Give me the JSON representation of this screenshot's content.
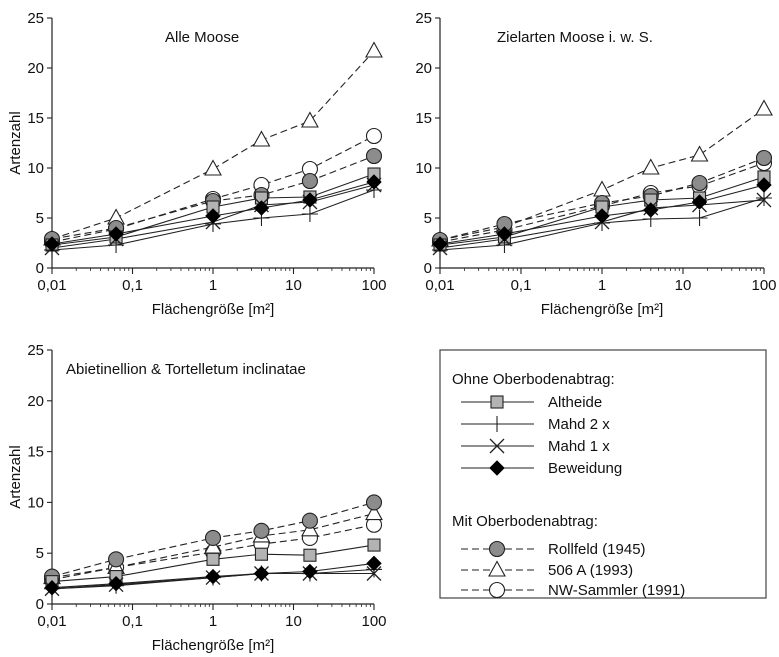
{
  "chart_data": [
    {
      "type": "line",
      "title": "Alle Moose",
      "xlabel": "Flächengröße [m²]",
      "ylabel": "Artenzahl",
      "xscale": "log",
      "x": [
        0.01,
        0.0625,
        1,
        4,
        16,
        100
      ],
      "xlim": [
        0.01,
        100
      ],
      "ylim": [
        0,
        25
      ],
      "xticks": [
        "0,01",
        "0,1",
        "1",
        "10",
        "100"
      ],
      "yticks": [
        0,
        5,
        10,
        15,
        20,
        25
      ],
      "series": [
        {
          "name": "Altheide",
          "values": [
            2.3,
            3.1,
            6.1,
            7.0,
            7.1,
            9.4
          ]
        },
        {
          "name": "Mahd 2 x",
          "values": [
            1.8,
            2.3,
            4.4,
            5.0,
            5.4,
            7.8
          ]
        },
        {
          "name": "Mahd 1 x",
          "values": [
            2.0,
            2.9,
            4.6,
            6.3,
            6.6,
            8.3
          ]
        },
        {
          "name": "Beweidung",
          "values": [
            2.4,
            3.4,
            5.2,
            6.0,
            6.8,
            8.6
          ]
        },
        {
          "name": "Rollfeld (1945)",
          "values": [
            2.9,
            4.0,
            6.7,
            7.3,
            8.7,
            11.2
          ]
        },
        {
          "name": "506 A (1993)",
          "values": [
            2.9,
            5.0,
            9.9,
            12.8,
            14.7,
            21.7
          ]
        },
        {
          "name": "NW-Sammler (1991)",
          "values": [
            2.6,
            3.9,
            6.9,
            8.3,
            9.9,
            13.2
          ]
        }
      ]
    },
    {
      "type": "line",
      "title": "Zielarten Moose i. w. S.",
      "xlabel": "Flächengröße [m²]",
      "ylabel": "",
      "xscale": "log",
      "x": [
        0.01,
        0.0625,
        1,
        4,
        16,
        100
      ],
      "xlim": [
        0.01,
        100
      ],
      "ylim": [
        0,
        25
      ],
      "xticks": [
        "0,01",
        "0,1",
        "1",
        "10",
        "100"
      ],
      "yticks": [
        0,
        5,
        10,
        15,
        20,
        25
      ],
      "series": [
        {
          "name": "Altheide",
          "values": [
            2.3,
            3.1,
            6.1,
            6.8,
            7.0,
            9.1
          ]
        },
        {
          "name": "Mahd 2 x",
          "values": [
            1.8,
            2.3,
            4.5,
            4.9,
            5.0,
            7.0
          ]
        },
        {
          "name": "Mahd 1 x",
          "values": [
            2.0,
            2.9,
            4.6,
            6.0,
            6.3,
            6.8
          ]
        },
        {
          "name": "Beweidung",
          "values": [
            2.4,
            3.4,
            5.2,
            5.8,
            6.6,
            8.3
          ]
        },
        {
          "name": "Rollfeld (1945)",
          "values": [
            2.8,
            4.4,
            6.5,
            7.2,
            8.5,
            11.0
          ]
        },
        {
          "name": "506 A (1993)",
          "values": [
            2.8,
            4.1,
            7.8,
            10.0,
            11.3,
            15.9
          ]
        },
        {
          "name": "NW-Sammler (1991)",
          "values": [
            2.6,
            3.8,
            6.2,
            7.5,
            8.2,
            10.5
          ]
        }
      ]
    },
    {
      "type": "line",
      "title": "Abietinellion & Tortelletum inclinatae",
      "xlabel": "Flächengröße [m²]",
      "ylabel": "Artenzahl",
      "xscale": "log",
      "x": [
        0.01,
        0.0625,
        1,
        4,
        16,
        100
      ],
      "xlim": [
        0.01,
        100
      ],
      "ylim": [
        0,
        25
      ],
      "xticks": [
        "0,01",
        "0,1",
        "1",
        "10",
        "100"
      ],
      "yticks": [
        0,
        5,
        10,
        15,
        20,
        25
      ],
      "series": [
        {
          "name": "Altheide",
          "values": [
            2.2,
            2.7,
            4.4,
            4.9,
            4.8,
            5.8
          ]
        },
        {
          "name": "Mahd 2 x",
          "values": [
            1.5,
            1.8,
            2.6,
            3.0,
            3.0,
            3.4
          ]
        },
        {
          "name": "Mahd 1 x",
          "values": [
            1.5,
            1.9,
            2.6,
            3.0,
            3.0,
            3.0
          ]
        },
        {
          "name": "Beweidung",
          "values": [
            1.6,
            2.0,
            2.7,
            3.0,
            3.2,
            4.0
          ]
        },
        {
          "name": "Rollfeld (1945)",
          "values": [
            2.7,
            4.4,
            6.5,
            7.2,
            8.2,
            10.0
          ]
        },
        {
          "name": "506 A (1993)",
          "values": [
            2.6,
            3.6,
            5.6,
            6.7,
            7.3,
            8.9
          ]
        },
        {
          "name": "NW-Sammler (1991)",
          "values": [
            2.4,
            3.6,
            5.1,
            5.9,
            6.5,
            7.8
          ]
        }
      ]
    }
  ],
  "legend": {
    "group1_title": "Ohne Oberbodenabtrag:",
    "group2_title": "Mit Oberbodenabtrag:",
    "items": [
      {
        "name": "Altheide",
        "marker": "square",
        "fill": "#b3b3b3",
        "dash": false
      },
      {
        "name": "Mahd 2 x",
        "marker": "plus",
        "fill": "none",
        "dash": false
      },
      {
        "name": "Mahd 1 x",
        "marker": "cross",
        "fill": "none",
        "dash": false
      },
      {
        "name": "Beweidung",
        "marker": "diamond",
        "fill": "#000000",
        "dash": false
      },
      {
        "name": "Rollfeld (1945)",
        "marker": "circle",
        "fill": "#8c8c8c",
        "dash": true
      },
      {
        "name": "506 A (1993)",
        "marker": "triangle",
        "fill": "#ffffff",
        "dash": true
      },
      {
        "name": "NW-Sammler (1991)",
        "marker": "circle",
        "fill": "#ffffff",
        "dash": true
      }
    ]
  }
}
